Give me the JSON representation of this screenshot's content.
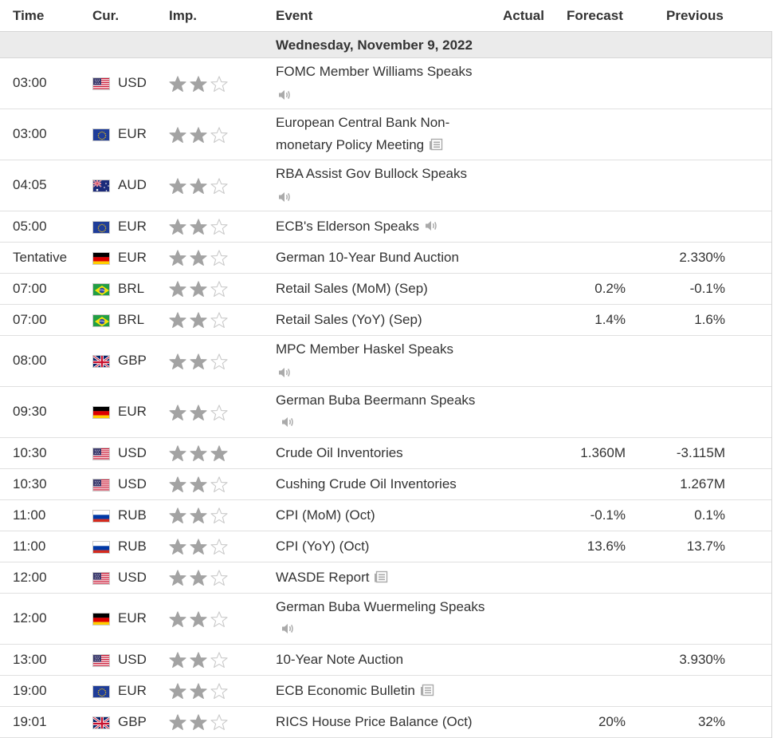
{
  "columns": {
    "time": "Time",
    "currency": "Cur.",
    "importance": "Imp.",
    "event": "Event",
    "actual": "Actual",
    "forecast": "Forecast",
    "previous": "Previous"
  },
  "date": "Wednesday, November 9, 2022",
  "colors": {
    "star_filled": "#a3a3a3",
    "star_empty": "#c9c9c9",
    "date_bg": "#ebebeb",
    "text": "#333333"
  },
  "rows": [
    {
      "time": "03:00",
      "flag": "us-flag",
      "currency": "USD",
      "importance": 2,
      "event": "FOMC Member Williams Speaks",
      "icon": "speaker-icon",
      "forecast": "",
      "previous": ""
    },
    {
      "time": "03:00",
      "flag": "eu-flag",
      "currency": "EUR",
      "importance": 2,
      "event": "European Central Bank Non-monetary Policy Meeting",
      "icon": "document-icon",
      "forecast": "",
      "previous": ""
    },
    {
      "time": "04:05",
      "flag": "au-flag",
      "currency": "AUD",
      "importance": 2,
      "event": "RBA Assist Gov Bullock Speaks",
      "icon": "speaker-icon",
      "forecast": "",
      "previous": ""
    },
    {
      "time": "05:00",
      "flag": "eu-flag",
      "currency": "EUR",
      "importance": 2,
      "event": "ECB's Elderson Speaks",
      "icon": "speaker-icon",
      "forecast": "",
      "previous": ""
    },
    {
      "time": "Tentative",
      "flag": "de-flag",
      "currency": "EUR",
      "importance": 2,
      "event": "German 10-Year Bund Auction",
      "icon": "",
      "forecast": "",
      "previous": "2.330%"
    },
    {
      "time": "07:00",
      "flag": "br-flag",
      "currency": "BRL",
      "importance": 2,
      "event": "Retail Sales (MoM) (Sep)",
      "icon": "",
      "forecast": "0.2%",
      "previous": "-0.1%"
    },
    {
      "time": "07:00",
      "flag": "br-flag",
      "currency": "BRL",
      "importance": 2,
      "event": "Retail Sales (YoY) (Sep)",
      "icon": "",
      "forecast": "1.4%",
      "previous": "1.6%"
    },
    {
      "time": "08:00",
      "flag": "gb-flag",
      "currency": "GBP",
      "importance": 2,
      "event": "MPC Member Haskel Speaks",
      "icon": "speaker-icon",
      "forecast": "",
      "previous": ""
    },
    {
      "time": "09:30",
      "flag": "de-flag",
      "currency": "EUR",
      "importance": 2,
      "event": "German Buba Beermann Speaks",
      "icon": "speaker-icon",
      "forecast": "",
      "previous": ""
    },
    {
      "time": "10:30",
      "flag": "us-flag",
      "currency": "USD",
      "importance": 3,
      "event": "Crude Oil Inventories",
      "icon": "",
      "forecast": "1.360M",
      "previous": "-3.115M"
    },
    {
      "time": "10:30",
      "flag": "us-flag",
      "currency": "USD",
      "importance": 2,
      "event": "Cushing Crude Oil Inventories",
      "icon": "",
      "forecast": "",
      "previous": "1.267M"
    },
    {
      "time": "11:00",
      "flag": "ru-flag",
      "currency": "RUB",
      "importance": 2,
      "event": "CPI (MoM) (Oct)",
      "icon": "",
      "forecast": "-0.1%",
      "previous": "0.1%"
    },
    {
      "time": "11:00",
      "flag": "ru-flag",
      "currency": "RUB",
      "importance": 2,
      "event": "CPI (YoY) (Oct)",
      "icon": "",
      "forecast": "13.6%",
      "previous": "13.7%"
    },
    {
      "time": "12:00",
      "flag": "us-flag",
      "currency": "USD",
      "importance": 2,
      "event": "WASDE Report",
      "icon": "document-icon",
      "forecast": "",
      "previous": ""
    },
    {
      "time": "12:00",
      "flag": "de-flag",
      "currency": "EUR",
      "importance": 2,
      "event": "German Buba Wuermeling Speaks",
      "icon": "speaker-icon",
      "forecast": "",
      "previous": ""
    },
    {
      "time": "13:00",
      "flag": "us-flag",
      "currency": "USD",
      "importance": 2,
      "event": "10-Year Note Auction",
      "icon": "",
      "forecast": "",
      "previous": "3.930%"
    },
    {
      "time": "19:00",
      "flag": "eu-flag",
      "currency": "EUR",
      "importance": 2,
      "event": "ECB Economic Bulletin",
      "icon": "document-icon",
      "forecast": "",
      "previous": ""
    },
    {
      "time": "19:01",
      "flag": "gb-flag",
      "currency": "GBP",
      "importance": 2,
      "event": "RICS House Price Balance (Oct)",
      "icon": "",
      "forecast": "20%",
      "previous": "32%"
    }
  ]
}
